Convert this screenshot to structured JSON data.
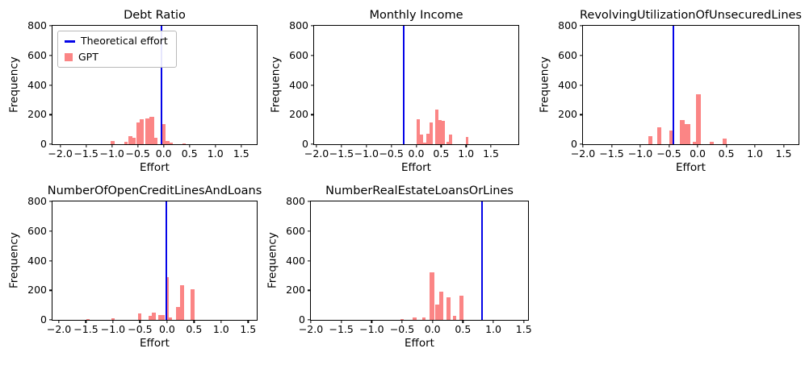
{
  "figure": {
    "background": "#ffffff"
  },
  "style": {
    "bar_color": "#fb8585",
    "line_color": "#0404e8",
    "axis_color": "#000000",
    "text_color": "#000000"
  },
  "legend": {
    "items": [
      {
        "label": "Theoretical effort",
        "marker": "line",
        "color": "#0404e8"
      },
      {
        "label": "GPT",
        "marker": "square",
        "color": "#fb8585"
      }
    ]
  },
  "chart_data": [
    {
      "type": "bar",
      "title": "Debt Ratio",
      "xlabel": "Effort",
      "ylabel": "Frequency",
      "xlim": [
        -2.15,
        1.8
      ],
      "ylim": [
        0,
        800
      ],
      "xticks": [
        -2.0,
        -1.5,
        -1.0,
        -0.5,
        0.0,
        0.5,
        1.0,
        1.5
      ],
      "xtick_labels": [
        "−2.0",
        "−1.5",
        "−1.0",
        "−0.5",
        "0.0",
        "0.5",
        "1.0",
        "1.5"
      ],
      "yticks": [
        0,
        200,
        400,
        600,
        800
      ],
      "theoretical_effort_x": -0.05,
      "legend_visible": true,
      "bars": [
        [
          -1.02,
          0.07,
          22
        ],
        [
          -0.76,
          0.07,
          14
        ],
        [
          -0.68,
          0.07,
          52
        ],
        [
          -0.61,
          0.07,
          42
        ],
        [
          -0.53,
          0.07,
          148
        ],
        [
          -0.46,
          0.08,
          168
        ],
        [
          -0.35,
          0.08,
          172
        ],
        [
          -0.27,
          0.08,
          186
        ],
        [
          -0.19,
          0.07,
          45
        ],
        [
          -0.04,
          0.08,
          135
        ],
        [
          0.04,
          0.07,
          22
        ],
        [
          0.11,
          0.07,
          10
        ],
        [
          0.36,
          0.07,
          8
        ]
      ]
    },
    {
      "type": "bar",
      "title": "Monthly Income",
      "xlabel": "Effort",
      "ylabel": "Frequency",
      "xlim": [
        -2.05,
        2.05
      ],
      "ylim": [
        0,
        800
      ],
      "xticks": [
        -2.0,
        -1.5,
        -1.0,
        -0.5,
        0.0,
        0.5,
        1.0,
        1.5
      ],
      "xtick_labels": [
        "−2.0",
        "−1.5",
        "−1.0",
        "−0.5",
        "0.0",
        "0.5",
        "1.0",
        "1.5"
      ],
      "yticks": [
        0,
        200,
        400,
        600,
        800
      ],
      "theoretical_effort_x": -0.25,
      "legend_visible": false,
      "bars": [
        [
          0.0,
          0.065,
          170
        ],
        [
          0.065,
          0.065,
          65
        ],
        [
          0.13,
          0.065,
          12
        ],
        [
          0.195,
          0.065,
          70
        ],
        [
          0.26,
          0.065,
          148
        ],
        [
          0.385,
          0.065,
          235
        ],
        [
          0.45,
          0.065,
          165
        ],
        [
          0.515,
          0.065,
          158
        ],
        [
          0.6,
          0.05,
          15
        ],
        [
          0.655,
          0.06,
          65
        ],
        [
          0.99,
          0.06,
          50
        ]
      ]
    },
    {
      "type": "bar",
      "title": "RevolvingUtilizationOfUnsecuredLines",
      "xlabel": "Effort",
      "ylabel": "Frequency",
      "xlim": [
        -2.0,
        1.76
      ],
      "ylim": [
        0,
        800
      ],
      "xticks": [
        -2.0,
        -1.5,
        -1.0,
        -0.5,
        0.0,
        0.5,
        1.0,
        1.5
      ],
      "xtick_labels": [
        "−2.0",
        "−1.5",
        "−1.0",
        "−0.5",
        "0.0",
        "0.5",
        "1.0",
        "1.5"
      ],
      "yticks": [
        0,
        200,
        400,
        600,
        800
      ],
      "theoretical_effort_x": -0.42,
      "legend_visible": false,
      "bars": [
        [
          -0.86,
          0.07,
          55
        ],
        [
          -0.71,
          0.07,
          115
        ],
        [
          -0.49,
          0.07,
          95
        ],
        [
          -0.31,
          0.08,
          165
        ],
        [
          -0.23,
          0.1,
          135
        ],
        [
          -0.085,
          0.05,
          15
        ],
        [
          -0.03,
          0.085,
          340
        ],
        [
          0.21,
          0.07,
          15
        ],
        [
          0.44,
          0.07,
          40
        ]
      ]
    },
    {
      "type": "bar",
      "title": "NumberOfOpenCreditLinesAndLoans",
      "xlabel": "Effort",
      "ylabel": "Frequency",
      "xlim": [
        -2.12,
        1.66
      ],
      "ylim": [
        0,
        800
      ],
      "xticks": [
        -2.0,
        -1.5,
        -1.0,
        -0.5,
        0.0,
        0.5,
        1.0,
        1.5
      ],
      "xtick_labels": [
        "−2.0",
        "−1.5",
        "−1.0",
        "−0.5",
        "0.0",
        "0.5",
        "1.0",
        "1.5"
      ],
      "yticks": [
        0,
        200,
        400,
        600,
        800
      ],
      "theoretical_effort_x": -0.01,
      "legend_visible": false,
      "bars": [
        [
          -1.49,
          0.06,
          5
        ],
        [
          -1.03,
          0.06,
          10
        ],
        [
          -0.54,
          0.07,
          45
        ],
        [
          -0.34,
          0.065,
          25
        ],
        [
          -0.275,
          0.065,
          50
        ],
        [
          -0.17,
          0.13,
          35
        ],
        [
          -0.035,
          0.07,
          290
        ],
        [
          0.035,
          0.06,
          15
        ],
        [
          0.165,
          0.07,
          85
        ],
        [
          0.235,
          0.085,
          235
        ],
        [
          0.43,
          0.08,
          205
        ]
      ]
    },
    {
      "type": "bar",
      "title": "NumberRealEstateLoansOrLines",
      "xlabel": "Effort",
      "ylabel": "Frequency",
      "xlim": [
        -2.0,
        1.57
      ],
      "ylim": [
        0,
        800
      ],
      "xticks": [
        -2.0,
        -1.5,
        -1.0,
        -0.5,
        0.0,
        0.5,
        1.0,
        1.5
      ],
      "xtick_labels": [
        "−2.0",
        "−1.5",
        "−1.0",
        "−0.5",
        "0.0",
        "0.5",
        "1.0",
        "1.5"
      ],
      "yticks": [
        0,
        200,
        400,
        600,
        800
      ],
      "theoretical_effort_x": 0.82,
      "legend_visible": false,
      "bars": [
        [
          -0.53,
          0.06,
          7
        ],
        [
          -0.33,
          0.07,
          14
        ],
        [
          -0.175,
          0.065,
          15
        ],
        [
          -0.045,
          0.08,
          320
        ],
        [
          0.05,
          0.06,
          105
        ],
        [
          0.11,
          0.07,
          190
        ],
        [
          0.23,
          0.07,
          150
        ],
        [
          0.34,
          0.05,
          30
        ],
        [
          0.44,
          0.07,
          165
        ]
      ]
    }
  ]
}
